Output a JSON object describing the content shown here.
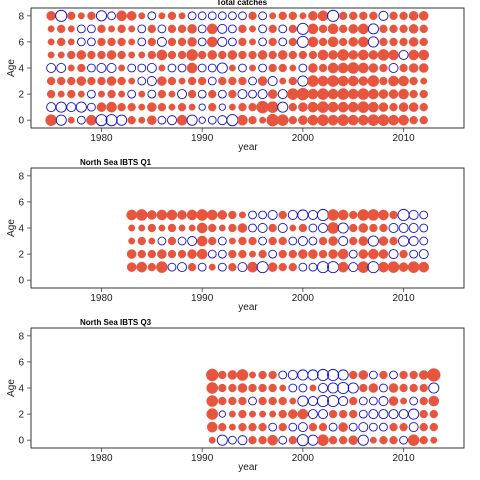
{
  "colors": {
    "positive": "#e8553f",
    "negative": "#1010d8",
    "frame": "#000000",
    "tick": "#444444"
  },
  "chart_data": [
    {
      "type": "scatter",
      "subtype": "residual-bubble",
      "title": "Total catches",
      "xlabel": "year",
      "ylabel": "Age",
      "xlim": [
        1973,
        2016
      ],
      "ylim": [
        -0.6,
        8.6
      ],
      "xticks": [
        1980,
        1990,
        2000,
        2010
      ],
      "yticks": [
        0,
        2,
        4,
        6,
        8
      ],
      "years": [
        1975,
        2012
      ],
      "ages": [
        0,
        8
      ],
      "grid": false,
      "legend": "none",
      "residuals": [
        [
          0.6,
          -0.5,
          0.2,
          -0.3,
          0.5,
          -0.6,
          -0.6,
          -0.5,
          0.3,
          0.2,
          0.4,
          -0.3,
          -0.4,
          0.5,
          -0.5,
          -0.2,
          -0.3,
          -0.4,
          -0.6,
          0.5,
          0.3,
          0.2,
          0.7,
          0.6,
          0.3,
          0.4,
          0.5,
          0.6,
          0.5,
          0.6,
          0.5,
          0.5,
          0.6,
          0.6,
          0.5,
          0.5,
          0.3,
          0.3
        ],
        [
          -0.4,
          -0.5,
          -0.4,
          -0.5,
          -0.3,
          0.4,
          0.5,
          0.3,
          0.3,
          0.2,
          0.4,
          0.3,
          0.2,
          0.3,
          0.2,
          -0.2,
          0.3,
          -0.2,
          0.2,
          0.3,
          0.3,
          0.7,
          0.6,
          -0.5,
          0.3,
          0.4,
          0.5,
          0.6,
          0.5,
          0.5,
          0.5,
          0.6,
          0.5,
          0.4,
          0.3,
          0.4,
          0.4,
          0.3
        ],
        [
          0.3,
          0.2,
          0.3,
          0.2,
          -0.3,
          0.2,
          0.3,
          0.2,
          -0.3,
          0.2,
          -0.3,
          0.3,
          0.2,
          -0.4,
          0.3,
          -0.3,
          0.3,
          -0.3,
          0.3,
          -0.4,
          -0.3,
          -0.4,
          0.4,
          -0.4,
          0.6,
          0.7,
          0.5,
          0.6,
          0.5,
          0.6,
          0.5,
          0.6,
          0.5,
          0.4,
          0.4,
          0.5,
          0.3,
          0.3
        ],
        [
          0.3,
          0.3,
          0.3,
          0.4,
          0.3,
          0.3,
          0.4,
          0.3,
          0.2,
          -0.3,
          -0.4,
          0.4,
          0.3,
          0.2,
          0.3,
          0.3,
          -0.3,
          0.3,
          0.3,
          0.3,
          -0.3,
          0.4,
          -0.4,
          0.2,
          0.3,
          -0.5,
          0.6,
          0.5,
          0.6,
          0.5,
          0.5,
          0.4,
          0.6,
          0.3,
          0.5,
          0.5,
          0.3,
          0.2
        ],
        [
          -0.4,
          -0.4,
          0.2,
          0.3,
          -0.3,
          -0.4,
          -0.4,
          0.2,
          -0.3,
          -0.3,
          -0.4,
          0.2,
          -0.3,
          -0.3,
          0.5,
          -0.3,
          -0.3,
          -0.5,
          0.2,
          -0.3,
          0.2,
          -0.3,
          0.3,
          0.3,
          0.2,
          -0.3,
          0.4,
          0.3,
          0.5,
          0.5,
          0.6,
          0.5,
          0.4,
          0.3,
          -0.4,
          0.3,
          0.4,
          0.4
        ],
        [
          0.2,
          0.2,
          0.3,
          0.4,
          0.3,
          0.3,
          0.4,
          0.3,
          0.2,
          0.2,
          0.3,
          0.5,
          0.3,
          0.3,
          0.6,
          0.3,
          0.4,
          0.3,
          0.4,
          0.3,
          0.3,
          0.4,
          0.3,
          0.4,
          0.3,
          0.3,
          0.3,
          0.5,
          0.4,
          0.6,
          0.4,
          0.5,
          0.4,
          0.6,
          0.5,
          -0.4,
          0.5,
          0.5
        ],
        [
          0.2,
          0.3,
          0.2,
          -0.3,
          -0.3,
          0.3,
          0.3,
          0.3,
          0.2,
          -0.3,
          0.3,
          -0.4,
          0.3,
          0.3,
          0.4,
          -0.3,
          0.5,
          -0.4,
          -0.3,
          0.3,
          0.2,
          -0.3,
          0.3,
          -0.3,
          0.3,
          -0.6,
          0.5,
          0.3,
          0.5,
          0.3,
          0.4,
          0.5,
          -0.5,
          0.3,
          0.3,
          0.3,
          0.4,
          0.3
        ],
        [
          0.2,
          0.3,
          0.2,
          -0.3,
          -0.3,
          0.3,
          0.2,
          0.3,
          0.2,
          -0.3,
          0.3,
          -0.3,
          0.3,
          0.3,
          0.4,
          -0.3,
          0.5,
          -0.4,
          -0.3,
          0.3,
          0.2,
          -0.3,
          0.3,
          -0.3,
          0.3,
          -0.6,
          0.5,
          0.3,
          0.5,
          0.3,
          0.4,
          0.5,
          -0.5,
          0.3,
          0.3,
          0.3,
          0.4,
          0.3
        ],
        [
          0.4,
          -0.6,
          0.3,
          0.2,
          0.3,
          -0.5,
          -0.3,
          0.5,
          0.4,
          0.2,
          -0.3,
          0.2,
          0.3,
          0.2,
          -0.3,
          -0.3,
          -0.3,
          -0.3,
          -0.3,
          -0.3,
          0.3,
          -0.3,
          0.2,
          0.3,
          0.3,
          0.2,
          0.4,
          0.5,
          -0.6,
          0.3,
          0.3,
          0.3,
          0.3,
          -0.4,
          0.3,
          0.3,
          0.4,
          0.4
        ]
      ]
    },
    {
      "type": "scatter",
      "subtype": "residual-bubble",
      "title": "North Sea IBTS Q1",
      "xlabel": "year",
      "ylabel": "Age",
      "xlim": [
        1973,
        2016
      ],
      "ylim": [
        -0.6,
        8.6
      ],
      "xticks": [
        1980,
        1990,
        2000,
        2010
      ],
      "yticks": [
        0,
        2,
        4,
        6,
        8
      ],
      "years": [
        1983,
        2012
      ],
      "ages": [
        1,
        5
      ],
      "grid": false,
      "legend": "none",
      "residuals": [
        [
          0.4,
          0.5,
          0.3,
          0.6,
          -0.3,
          -0.4,
          0.3,
          -0.3,
          0.2,
          -0.3,
          0.3,
          -0.4,
          0.5,
          -0.6,
          0.4,
          0.3,
          0.3,
          -0.3,
          -0.3,
          -0.6,
          -0.6,
          0.5,
          -0.4,
          0.6,
          -0.6,
          0.5,
          0.6,
          0.4,
          0.6,
          0.5
        ],
        [
          0.4,
          0.3,
          0.3,
          0.4,
          0.3,
          0.3,
          0.4,
          0.5,
          -0.3,
          -0.3,
          0.3,
          0.3,
          0.2,
          0.3,
          -0.3,
          0.3,
          0.3,
          0.4,
          0.4,
          0.3,
          0.4,
          0.5,
          -0.3,
          0.4,
          0.5,
          0.4,
          -0.4,
          0.3,
          -0.3,
          -0.4
        ],
        [
          0.2,
          0.3,
          0.2,
          -0.3,
          0.3,
          -0.3,
          -0.4,
          0.5,
          0.3,
          -0.3,
          0.2,
          0.3,
          0.3,
          -0.3,
          0.3,
          0.3,
          -0.3,
          -0.4,
          -0.3,
          0.3,
          0.4,
          -0.4,
          0.3,
          0.4,
          -0.5,
          0.4,
          0.3,
          -0.5,
          -0.4,
          -0.3
        ],
        [
          0.2,
          0.2,
          0.3,
          0.2,
          0.3,
          0.2,
          0.2,
          0.5,
          0.3,
          0.2,
          0.3,
          0.4,
          -0.3,
          -0.4,
          0.3,
          -0.4,
          0.2,
          0.3,
          -0.3,
          -0.4,
          0.6,
          -0.5,
          0.3,
          0.4,
          0.3,
          0.3,
          -0.4,
          -0.4,
          -0.4,
          -0.3
        ],
        [
          0.5,
          0.6,
          0.4,
          0.5,
          0.5,
          0.4,
          0.5,
          0.6,
          0.5,
          0.4,
          0.3,
          0.2,
          -0.3,
          -0.3,
          -0.4,
          0.3,
          -0.4,
          -0.5,
          -0.4,
          -0.6,
          0.6,
          0.5,
          0.3,
          0.6,
          0.6,
          0.5,
          0.3,
          -0.6,
          -0.4,
          -0.3
        ]
      ]
    },
    {
      "type": "scatter",
      "subtype": "residual-bubble",
      "title": "North Sea IBTS Q3",
      "xlabel": "year",
      "ylabel": "Age",
      "xlim": [
        1973,
        2016
      ],
      "ylim": [
        -0.6,
        8.6
      ],
      "xticks": [
        1980,
        1990,
        2000,
        2010
      ],
      "yticks": [
        0,
        2,
        4,
        6,
        8
      ],
      "years": [
        1991,
        2013
      ],
      "ages": [
        0,
        5
      ],
      "grid": false,
      "legend": "none",
      "residuals": [
        [
          0.2,
          -0.5,
          -0.3,
          -0.4,
          0.3,
          0.3,
          0.5,
          -0.3,
          0.3,
          -0.6,
          -0.5,
          0.6,
          0.3,
          0.3,
          0.4,
          -0.5,
          0.2,
          0.3,
          0.3,
          -0.3,
          0.6,
          0.3,
          0.2
        ],
        [
          0.5,
          0.3,
          0.2,
          0.3,
          0.3,
          0.3,
          -0.3,
          0.3,
          -0.3,
          -0.4,
          0.3,
          0.3,
          -0.3,
          0.4,
          -0.3,
          -0.4,
          -0.3,
          -0.3,
          0.3,
          0.3,
          -0.4,
          0.3,
          0.3
        ],
        [
          0.6,
          -0.2,
          0.2,
          0.3,
          0.2,
          0.2,
          0.2,
          0.3,
          0.4,
          0.5,
          -0.4,
          -0.4,
          0.3,
          0.3,
          0.3,
          -0.3,
          -0.4,
          -0.4,
          -0.4,
          -0.4,
          -0.5,
          0.3,
          0.3
        ],
        [
          0.6,
          0.3,
          0.3,
          0.3,
          -0.3,
          0.3,
          0.3,
          0.3,
          0.2,
          -0.5,
          -0.4,
          -0.6,
          -0.6,
          -0.4,
          0.3,
          -0.3,
          -0.3,
          -0.4,
          0.4,
          0.2,
          -0.3,
          0.3,
          0.5
        ],
        [
          0.6,
          0.3,
          0.3,
          0.4,
          0.3,
          0.3,
          0.3,
          0.2,
          -0.3,
          -0.3,
          0.2,
          -0.4,
          -0.5,
          -0.6,
          -0.5,
          0.3,
          0.4,
          -0.3,
          0.4,
          0.3,
          0.3,
          0.3,
          -0.5
        ],
        [
          0.7,
          0.3,
          0.4,
          0.6,
          0.2,
          0.3,
          0.3,
          -0.3,
          -0.4,
          -0.5,
          -0.5,
          -0.6,
          -0.6,
          -0.5,
          0.3,
          0.4,
          -0.3,
          0.3,
          -0.3,
          0.3,
          0.3,
          0.4,
          0.8
        ]
      ]
    }
  ]
}
